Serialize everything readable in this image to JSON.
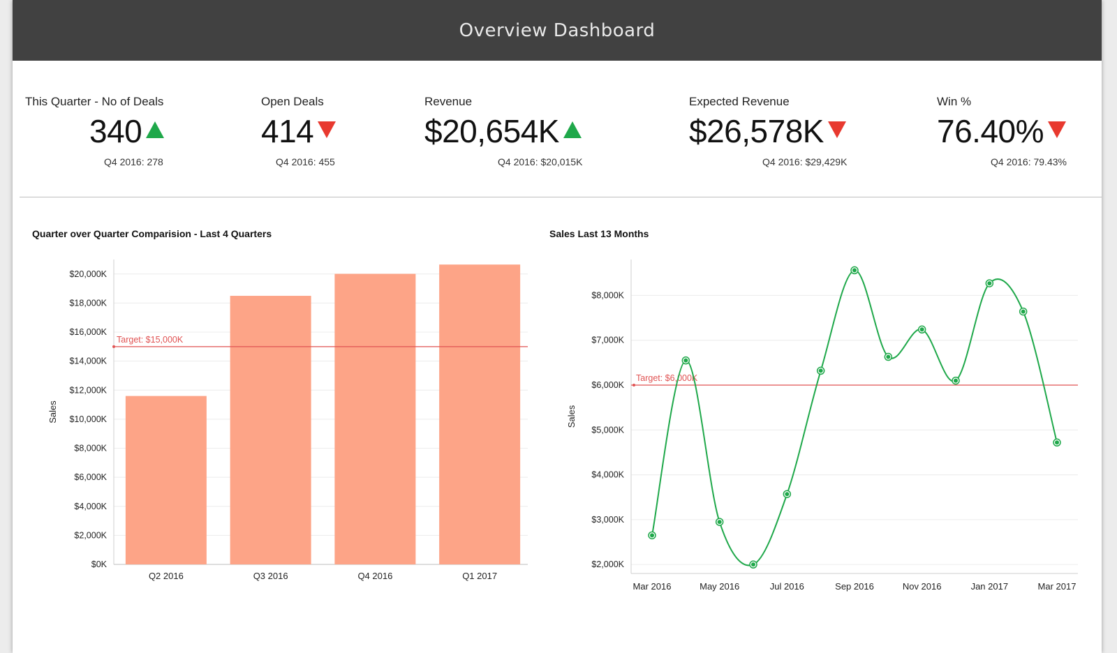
{
  "header": {
    "title": "Overview Dashboard"
  },
  "kpis": [
    {
      "label": "This Quarter - No of Deals",
      "value": "340",
      "trend": "up",
      "previous": "Q4 2016: 278"
    },
    {
      "label": "Open Deals",
      "value": "414",
      "trend": "down",
      "previous": "Q4 2016: 455"
    },
    {
      "label": "Revenue",
      "value": "$20,654K",
      "trend": "up",
      "previous": "Q4 2016: $20,015K"
    },
    {
      "label": "Expected Revenue",
      "value": "$26,578K",
      "trend": "down",
      "previous": "Q4 2016: $29,429K"
    },
    {
      "label": "Win %",
      "value": "76.40%",
      "trend": "down",
      "previous": "Q4 2016: 79.43%"
    }
  ],
  "colors": {
    "up": "#1fa84a",
    "down": "#e8392f",
    "bar": "#fda487",
    "line": "#1fa84a",
    "target": "#e05252"
  },
  "chart_data": [
    {
      "type": "bar",
      "title": "Quarter over Quarter Comparision - Last 4 Quarters",
      "ylabel": "Sales",
      "xlabel": "",
      "categories": [
        "Q2 2016",
        "Q3 2016",
        "Q4 2016",
        "Q1 2017"
      ],
      "values": [
        11600,
        18500,
        20015,
        20654
      ],
      "ylim": [
        0,
        21000
      ],
      "yticks": [
        0,
        2000,
        4000,
        6000,
        8000,
        10000,
        12000,
        14000,
        16000,
        18000,
        20000
      ],
      "ytick_labels": [
        "$0K",
        "$2,000K",
        "$4,000K",
        "$6,000K",
        "$8,000K",
        "$10,000K",
        "$12,000K",
        "$14,000K",
        "$16,000K",
        "$18,000K",
        "$20,000K"
      ],
      "target": {
        "value": 15000,
        "label": "Target: $15,000K"
      },
      "grid": true
    },
    {
      "type": "line",
      "title": "Sales Last 13 Months",
      "ylabel": "Sales",
      "xlabel": "",
      "x": [
        "Mar 2016",
        "Apr 2016",
        "May 2016",
        "Jun 2016",
        "Jul 2016",
        "Aug 2016",
        "Sep 2016",
        "Oct 2016",
        "Nov 2016",
        "Dec 2016",
        "Jan 2017",
        "Feb 2017",
        "Mar 2017"
      ],
      "x_tick_labels": [
        "Mar 2016",
        "May 2016",
        "Jul 2016",
        "Sep 2016",
        "Nov 2016",
        "Jan 2017",
        "Mar 2017"
      ],
      "values": [
        2650,
        6550,
        2950,
        2000,
        3570,
        6320,
        8560,
        6630,
        7240,
        6100,
        8270,
        7640,
        4720
      ],
      "ylim": [
        1800,
        8800
      ],
      "yticks": [
        2000,
        3000,
        4000,
        5000,
        6000,
        7000,
        8000
      ],
      "ytick_labels": [
        "$2,000K",
        "$3,000K",
        "$4,000K",
        "$5,000K",
        "$6,000K",
        "$7,000K",
        "$8,000K"
      ],
      "target": {
        "value": 6000,
        "label": "Target: $6,000K"
      },
      "grid": true
    }
  ]
}
